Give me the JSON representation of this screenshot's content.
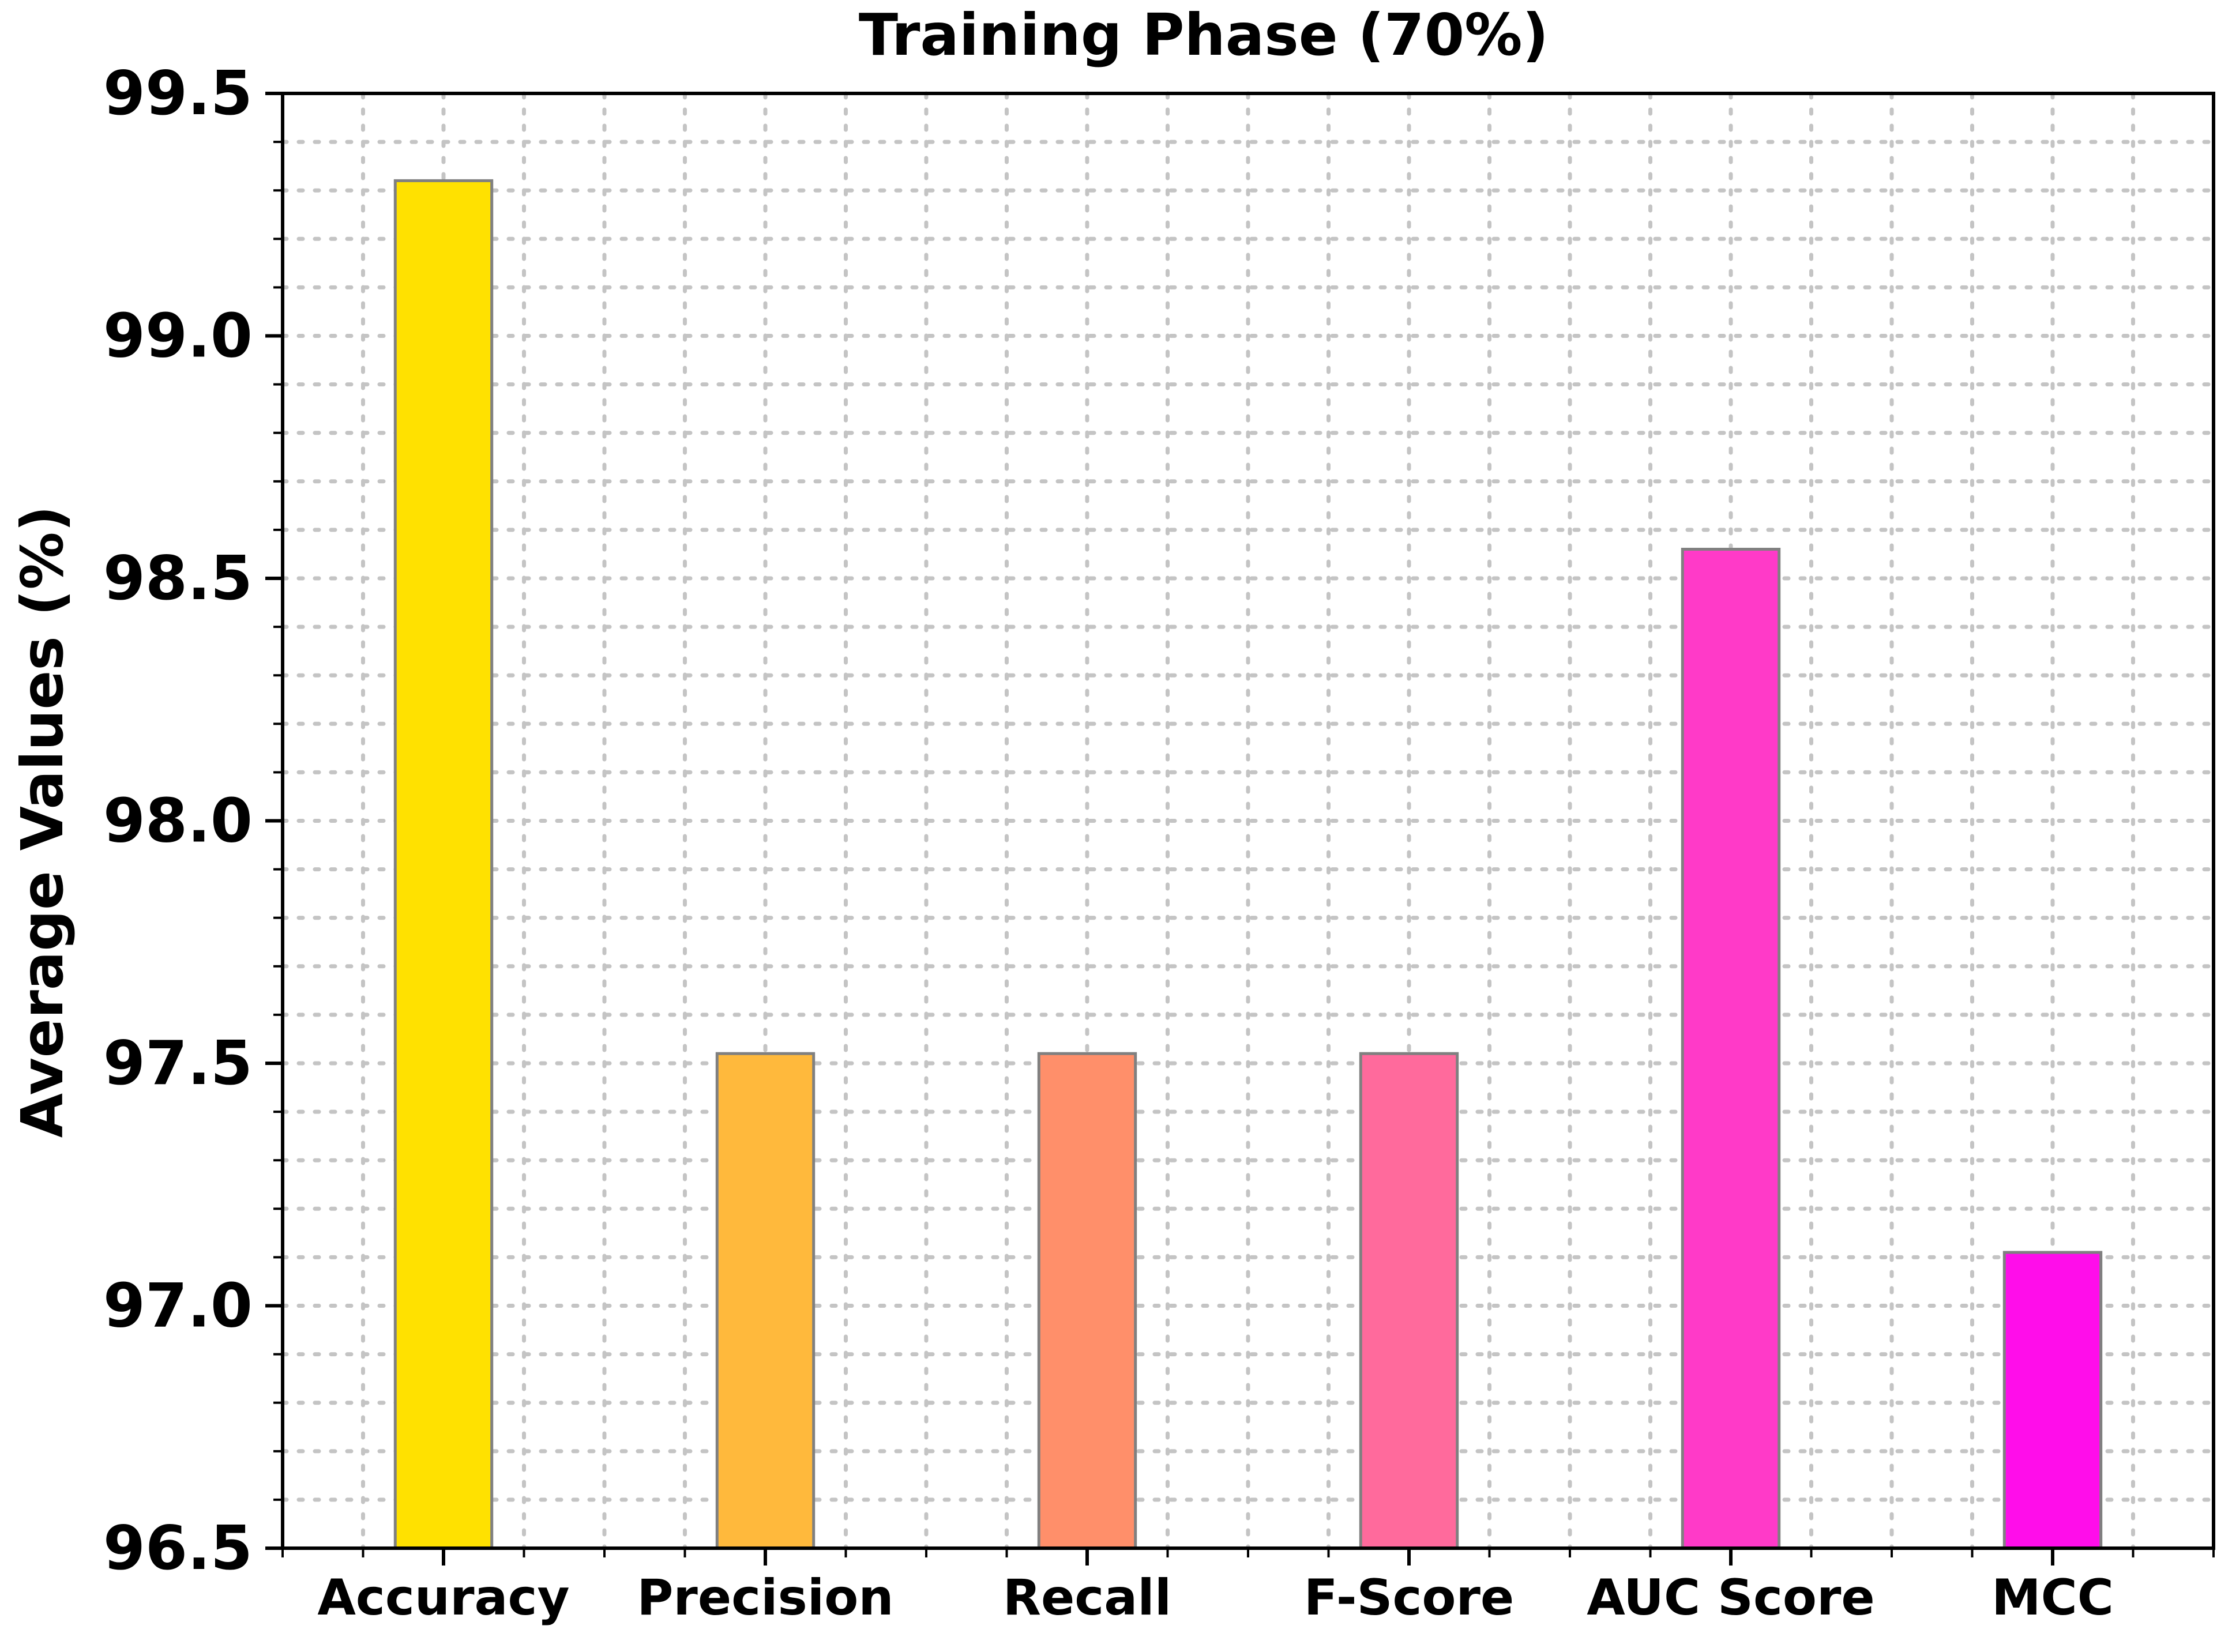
{
  "chart_data": {
    "type": "bar",
    "title": "Training Phase (70%)",
    "xlabel": "",
    "ylabel": "Average Values (%)",
    "categories": [
      "Accuracy",
      "Precision",
      "Recall",
      "F-Score",
      "AUC Score",
      "MCC"
    ],
    "values": [
      99.32,
      97.52,
      97.52,
      97.52,
      98.56,
      97.11
    ],
    "colors": [
      "#ffe100",
      "#ffb93c",
      "#ff8f6a",
      "#ff6a9c",
      "#ff3ac8",
      "#ff0dea"
    ],
    "ylim": [
      96.5,
      99.5
    ],
    "yticks": [
      "96.5",
      "97.0",
      "97.5",
      "98.0",
      "98.5",
      "99.0",
      "99.5"
    ],
    "grid": true,
    "grid_style": "dotted",
    "bar_edge_color": "#808080",
    "legend": false
  }
}
